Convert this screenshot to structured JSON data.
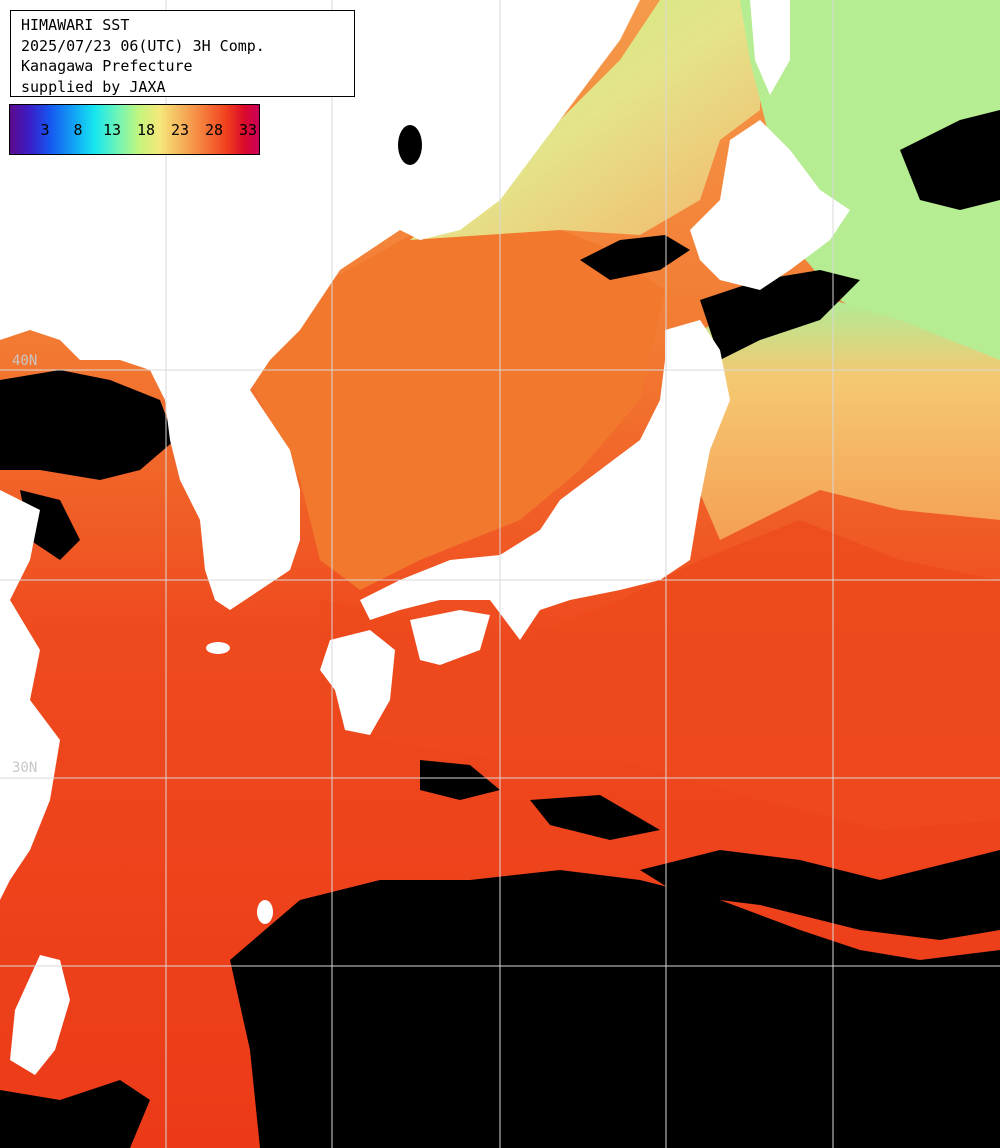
{
  "info": {
    "line1": "HIMAWARI SST",
    "line2": "2025/07/23 06(UTC) 3H Comp.",
    "line3": "Kanagawa Prefecture",
    "line4": "supplied by JAXA"
  },
  "legend": {
    "ticks": [
      "3",
      "8",
      "13",
      "18",
      "23",
      "28",
      "33"
    ]
  },
  "grid_labels": {
    "lat_label_1": "40N",
    "lat_label_2": "30N"
  },
  "colors": {
    "land": "#ffffff",
    "cloud_missing": "#000000",
    "grid": "#d8d8d8",
    "sst_warm": "#f25a1e",
    "sst_hot": "#e8281a",
    "sst_mild": "#f5b066",
    "sst_cool": "#c8f090"
  }
}
